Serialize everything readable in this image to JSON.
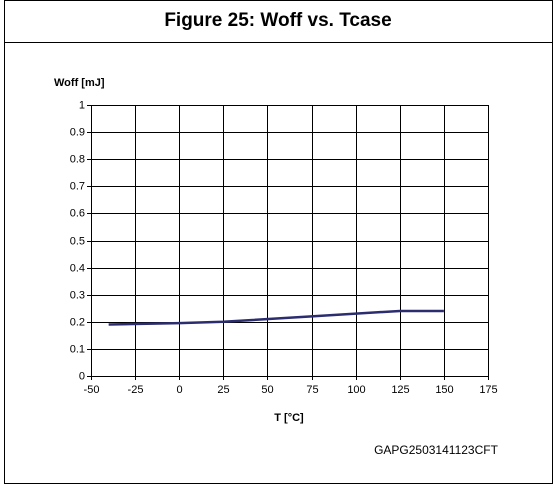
{
  "chart_data": {
    "type": "line",
    "title": "Figure 25: Woff vs. Tcase",
    "y_label": "Woff [mJ]",
    "x_label": "T [°C]",
    "footer": "GAPG2503141123CFT",
    "x": [
      -40,
      0,
      25,
      75,
      125,
      150
    ],
    "series": [
      {
        "name": "Woff",
        "color": "#2b2d6e",
        "values": [
          0.19,
          0.195,
          0.2,
          0.22,
          0.24,
          0.24
        ]
      }
    ],
    "xlim": [
      -50,
      175
    ],
    "xticks": [
      -50,
      -25,
      0,
      25,
      50,
      75,
      100,
      125,
      150,
      175
    ],
    "ylim": [
      0,
      1
    ],
    "yticks": [
      0,
      0.1,
      0.2,
      0.3,
      0.4,
      0.5,
      0.6,
      0.7,
      0.8,
      0.9,
      1
    ],
    "grid": true
  }
}
